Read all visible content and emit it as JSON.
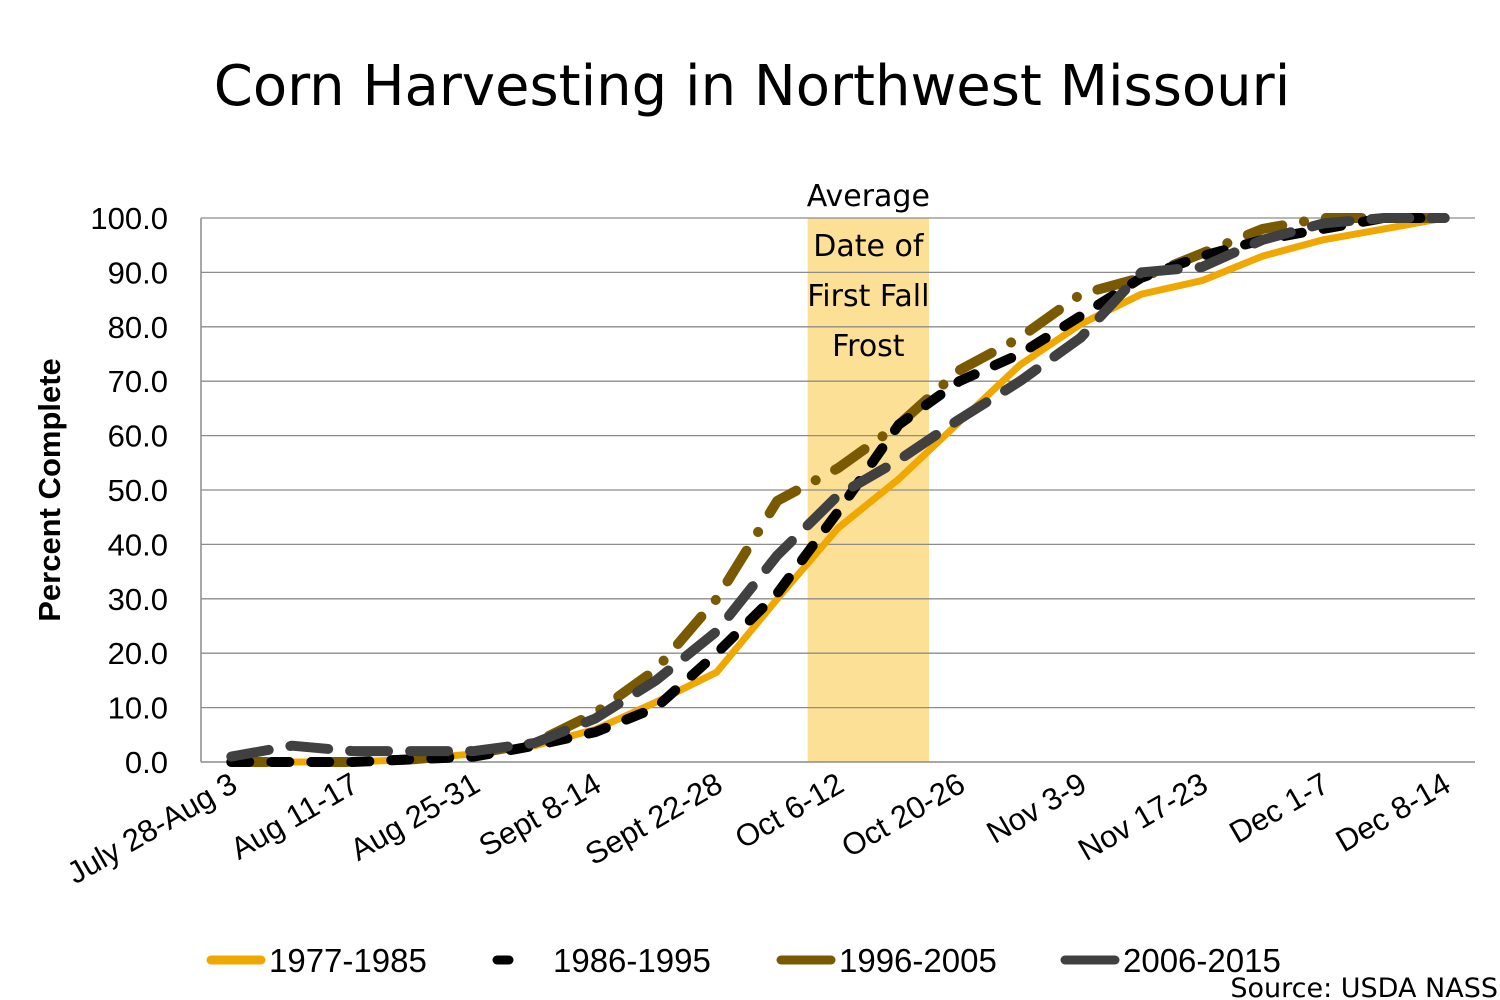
{
  "chart_data": {
    "type": "line",
    "title": "Corn Harvesting in Northwest Missouri",
    "xlabel": "",
    "ylabel": "Percent Complete",
    "ylim": [
      0,
      100
    ],
    "yticks": [
      "0.0",
      "10.0",
      "20.0",
      "30.0",
      "40.0",
      "50.0",
      "60.0",
      "70.0",
      "80.0",
      "90.0",
      "100.0"
    ],
    "grid": true,
    "category_count": 21,
    "tick_labels": [
      {
        "index": 0,
        "label": "July 28-Aug 3"
      },
      {
        "index": 2,
        "label": "Aug 11-17"
      },
      {
        "index": 4,
        "label": "Aug 25-31"
      },
      {
        "index": 6,
        "label": "Sept 8-14"
      },
      {
        "index": 8,
        "label": "Sept 22-28"
      },
      {
        "index": 10,
        "label": "Oct 6-12"
      },
      {
        "index": 12,
        "label": "Oct 20-26"
      },
      {
        "index": 14,
        "label": "Nov 3-9"
      },
      {
        "index": 16,
        "label": "Nov 17-23"
      },
      {
        "index": 18,
        "label": "Dec 1-7"
      },
      {
        "index": 20,
        "label": "Dec 8-14"
      }
    ],
    "series": [
      {
        "name": "1977-1985",
        "color": "#F0A800",
        "dash": "solid",
        "values": [
          0,
          0,
          0,
          0.5,
          1.5,
          3,
          6,
          11,
          16.5,
          30,
          43,
          52,
          62.5,
          73,
          80.5,
          86,
          88.5,
          93,
          96,
          98,
          100
        ]
      },
      {
        "name": "1986-1995",
        "color": "#000000",
        "dash": "dash",
        "values": [
          0,
          0,
          0,
          0.5,
          1,
          3,
          5.5,
          10,
          20,
          31,
          46,
          62,
          70,
          75,
          82,
          89,
          93,
          96,
          98,
          100,
          100
        ]
      },
      {
        "name": "1996-2005",
        "color": "#7A5A00",
        "dash": "longdashdot",
        "values": [
          0,
          0,
          0,
          0.5,
          1.5,
          3.5,
          9,
          17,
          30,
          48,
          54,
          62,
          72,
          78,
          86,
          89,
          93.5,
          98,
          100,
          100,
          100
        ]
      },
      {
        "name": "2006-2015",
        "color": "#404040",
        "dash": "longdash",
        "values": [
          1,
          3,
          2,
          2,
          2,
          3.5,
          8,
          15,
          24,
          38,
          49,
          55.5,
          63,
          70,
          78,
          90,
          91,
          96,
          99,
          100,
          100
        ]
      }
    ],
    "annotation": {
      "lines": [
        "Average",
        "Date of",
        "First Fall",
        "Frost"
      ],
      "band_start_index": 10,
      "band_end_index": 11,
      "color": "#FCE095"
    },
    "legend_position": "bottom",
    "source": "Source: USDA NASS"
  }
}
